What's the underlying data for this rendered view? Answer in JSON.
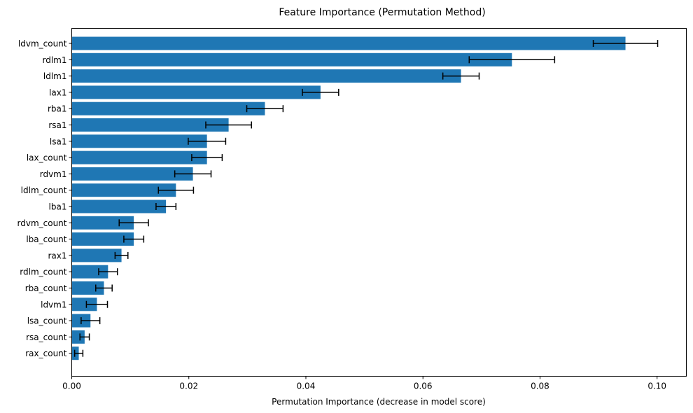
{
  "chart_data": {
    "type": "bar",
    "orientation": "horizontal",
    "title": "Feature Importance (Permutation Method)",
    "xlabel": "Permutation Importance (decrease in model score)",
    "ylabel": "",
    "xlim": [
      0,
      0.105
    ],
    "xticks": [
      "0.00",
      "0.02",
      "0.04",
      "0.06",
      "0.08",
      "0.10"
    ],
    "categories": [
      "ldvm_count",
      "rdlm1",
      "ldlm1",
      "lax1",
      "rba1",
      "rsa1",
      "lsa1",
      "lax_count",
      "rdvm1",
      "ldlm_count",
      "lba1",
      "rdvm_count",
      "lba_count",
      "rax1",
      "rdlm_count",
      "rba_count",
      "ldvm1",
      "lsa_count",
      "rsa_count",
      "rax_count"
    ],
    "values": [
      0.0946,
      0.0752,
      0.0665,
      0.0425,
      0.033,
      0.0268,
      0.0231,
      0.0231,
      0.0207,
      0.0178,
      0.0161,
      0.0106,
      0.0106,
      0.0085,
      0.0062,
      0.0055,
      0.0043,
      0.0032,
      0.0022,
      0.0012
    ],
    "errors": [
      0.0055,
      0.0073,
      0.0031,
      0.0031,
      0.0031,
      0.0039,
      0.0032,
      0.0026,
      0.0031,
      0.003,
      0.0017,
      0.0025,
      0.0017,
      0.0011,
      0.0016,
      0.0014,
      0.0018,
      0.0016,
      0.0008,
      0.0007
    ],
    "bar_color": "#1f77b4",
    "error_color": "#000000",
    "grid": false,
    "legend": "none"
  }
}
